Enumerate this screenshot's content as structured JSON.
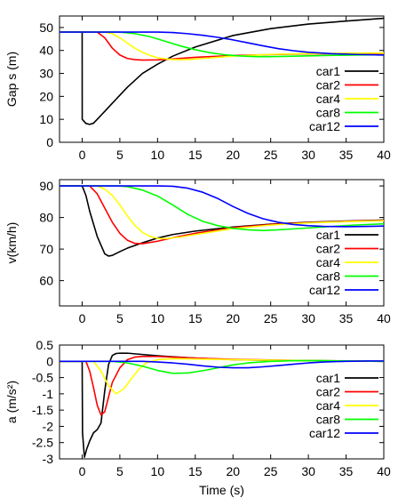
{
  "chart_data": [
    {
      "type": "line",
      "ylabel": "Gap s (m)",
      "xlabel": "",
      "xlim": [
        -3,
        40
      ],
      "ylim": [
        0,
        55
      ],
      "xticks": [
        0,
        5,
        10,
        15,
        20,
        25,
        30,
        35,
        40
      ],
      "yticks": [
        0,
        10,
        20,
        30,
        40,
        50
      ],
      "legend": "bottom-right",
      "series": [
        {
          "name": "car1",
          "color": "#000000",
          "x": [
            -3,
            0,
            0.01,
            0.5,
            1,
            1.5,
            2,
            3,
            4,
            5,
            6,
            8,
            10,
            12,
            15,
            20,
            25,
            30,
            35,
            40
          ],
          "y": [
            48,
            48,
            10,
            8.2,
            7.8,
            8.3,
            10,
            13.5,
            17,
            20.5,
            24,
            30,
            34,
            37.5,
            41.5,
            46.5,
            49.5,
            51.5,
            52.8,
            54
          ]
        },
        {
          "name": "car2",
          "color": "#ff0000",
          "x": [
            -3,
            2,
            3,
            4,
            5,
            6,
            7,
            8,
            10,
            12,
            15,
            20,
            25,
            30,
            35,
            40
          ],
          "y": [
            48,
            48,
            45.5,
            41,
            38,
            36.5,
            36,
            35.8,
            35.9,
            36.3,
            37,
            37.8,
            38.2,
            38.5,
            38.6,
            38.7
          ]
        },
        {
          "name": "car4",
          "color": "#ffff00",
          "x": [
            -3,
            3,
            4,
            5,
            6,
            7,
            8,
            9,
            10,
            12,
            14,
            16,
            20,
            25,
            30,
            35,
            40
          ],
          "y": [
            48,
            48,
            47.3,
            45.5,
            43.2,
            41,
            39.2,
            37.8,
            36.8,
            36,
            36,
            36.5,
            37.5,
            38.3,
            38.6,
            38.8,
            38.9
          ]
        },
        {
          "name": "car8",
          "color": "#00ff00",
          "x": [
            -3,
            5,
            7,
            9,
            11,
            13,
            15,
            17,
            19,
            21,
            23,
            25,
            28,
            32,
            36,
            40
          ],
          "y": [
            48,
            48,
            47.3,
            46,
            44,
            42,
            40.3,
            39,
            38.1,
            37.6,
            37.3,
            37.3,
            37.5,
            37.8,
            38,
            38.1
          ]
        },
        {
          "name": "car12",
          "color": "#0000ff",
          "x": [
            -3,
            10,
            12,
            14,
            16,
            18,
            20,
            22,
            24,
            26,
            28,
            30,
            33,
            36,
            40
          ],
          "y": [
            48,
            48,
            47.8,
            47.3,
            46.6,
            45.7,
            44.6,
            43.3,
            42,
            40.8,
            39.9,
            39.2,
            38.6,
            38.3,
            38
          ]
        }
      ]
    },
    {
      "type": "line",
      "ylabel": "v(km/h)",
      "xlabel": "",
      "xlim": [
        -3,
        40
      ],
      "ylim": [
        52,
        92
      ],
      "xticks": [
        0,
        5,
        10,
        15,
        20,
        25,
        30,
        35,
        40
      ],
      "yticks": [
        60,
        70,
        80,
        90
      ],
      "legend": "bottom-right",
      "series": [
        {
          "name": "car1",
          "color": "#000000",
          "x": [
            -3,
            0,
            0.5,
            1,
            2,
            3,
            3.5,
            4,
            5,
            6,
            8,
            10,
            12,
            15,
            20,
            25,
            30,
            35,
            40
          ],
          "y": [
            90,
            90,
            87,
            82,
            74,
            68.5,
            67.8,
            68,
            69.2,
            70.3,
            72,
            73.5,
            74.6,
            75.7,
            77,
            77.9,
            78.5,
            78.9,
            79.2
          ]
        },
        {
          "name": "car2",
          "color": "#ff0000",
          "x": [
            -3,
            1,
            2,
            3,
            4,
            5,
            6,
            7,
            8,
            10,
            12,
            15,
            20,
            25,
            30,
            35,
            40
          ],
          "y": [
            90,
            90,
            87.5,
            83,
            78.5,
            75,
            72.8,
            71.8,
            71.7,
            72.5,
            73.6,
            75,
            76.8,
            77.8,
            78.4,
            78.8,
            79.1
          ]
        },
        {
          "name": "car4",
          "color": "#ffff00",
          "x": [
            -3,
            2,
            3,
            4,
            5,
            6,
            7,
            8,
            9,
            10,
            11,
            13,
            15,
            20,
            25,
            30,
            35,
            40
          ],
          "y": [
            90,
            90,
            89,
            87,
            84,
            80.5,
            77.5,
            75.3,
            74,
            73.4,
            73.3,
            73.8,
            74.6,
            76.5,
            77.6,
            78.3,
            78.7,
            79
          ]
        },
        {
          "name": "car8",
          "color": "#00ff00",
          "x": [
            -3,
            5,
            6,
            8,
            10,
            12,
            14,
            16,
            18,
            20,
            22,
            24,
            26,
            28,
            32,
            36,
            40
          ],
          "y": [
            90,
            90,
            89.8,
            88.7,
            86.8,
            84,
            81,
            78.8,
            77.4,
            76.6,
            76.1,
            75.9,
            76.1,
            76.4,
            77,
            77.6,
            78
          ]
        },
        {
          "name": "car12",
          "color": "#0000ff",
          "x": [
            -3,
            10,
            12,
            14,
            16,
            18,
            20,
            22,
            24,
            26,
            28,
            30,
            32,
            35,
            38,
            40
          ],
          "y": [
            90,
            90,
            89.9,
            89.3,
            88,
            86,
            83.5,
            81.3,
            79.6,
            78.5,
            77.8,
            77.4,
            77.2,
            77.1,
            77.2,
            77.3
          ]
        }
      ]
    },
    {
      "type": "line",
      "ylabel": "a (m/s²)",
      "xlabel": "Time (s)",
      "xlim": [
        -3,
        40
      ],
      "ylim": [
        -3,
        0.5
      ],
      "xticks": [
        0,
        5,
        10,
        15,
        20,
        25,
        30,
        35,
        40
      ],
      "yticks": [
        -3,
        -2.5,
        -2,
        -1.5,
        -1,
        -0.5,
        0,
        0.5
      ],
      "yticklabels": [
        "-3",
        "-2.5",
        "-2",
        "-1.5",
        "-1",
        "-0.5",
        "0",
        "0.5"
      ],
      "legend": "bottom-right",
      "series": [
        {
          "name": "car1",
          "color": "#000000",
          "x": [
            -3,
            0,
            0.05,
            0.3,
            0.6,
            1,
            1.5,
            2,
            2.5,
            3,
            3.5,
            4,
            4.5,
            5,
            6,
            7,
            8,
            10,
            12,
            15,
            20,
            25,
            30,
            40
          ],
          "y": [
            0,
            0,
            -2.2,
            -2.95,
            -2.7,
            -2.45,
            -2.2,
            -2.1,
            -1.9,
            -0.9,
            -0.1,
            0.18,
            0.24,
            0.25,
            0.25,
            0.23,
            0.21,
            0.17,
            0.14,
            0.1,
            0.05,
            0.03,
            0.02,
            0
          ]
        },
        {
          "name": "car2",
          "color": "#ff0000",
          "x": [
            -3,
            0.5,
            1,
            1.5,
            2,
            2.5,
            3,
            3.5,
            4,
            5,
            6,
            7,
            8,
            10,
            12,
            15,
            20,
            30,
            40
          ],
          "y": [
            0,
            0,
            -0.3,
            -0.8,
            -1.35,
            -1.65,
            -1.55,
            -1.1,
            -0.65,
            -0.2,
            0.05,
            0.13,
            0.15,
            0.15,
            0.13,
            0.1,
            0.06,
            0.02,
            0
          ]
        },
        {
          "name": "car4",
          "color": "#ffff00",
          "x": [
            -3,
            1.5,
            2.5,
            3.5,
            4.5,
            5.5,
            6.5,
            7.5,
            8.5,
            10,
            12,
            15,
            20,
            30,
            40
          ],
          "y": [
            0,
            0,
            -0.3,
            -0.75,
            -1.0,
            -0.85,
            -0.55,
            -0.25,
            -0.05,
            0.05,
            0.08,
            0.07,
            0.05,
            0.02,
            0
          ]
        },
        {
          "name": "car8",
          "color": "#00ff00",
          "x": [
            -3,
            4,
            6,
            8,
            10,
            12,
            14,
            16,
            18,
            20,
            22,
            25,
            28,
            32,
            36,
            40
          ],
          "y": [
            0,
            0,
            -0.05,
            -0.15,
            -0.28,
            -0.37,
            -0.36,
            -0.29,
            -0.2,
            -0.11,
            -0.05,
            0,
            0.02,
            0.02,
            0.01,
            0
          ]
        },
        {
          "name": "car12",
          "color": "#0000ff",
          "x": [
            -3,
            8,
            10,
            12,
            14,
            16,
            18,
            20,
            22,
            24,
            26,
            28,
            30,
            32,
            35,
            38,
            40
          ],
          "y": [
            0,
            0,
            -0.02,
            -0.05,
            -0.09,
            -0.14,
            -0.18,
            -0.2,
            -0.2,
            -0.17,
            -0.13,
            -0.09,
            -0.05,
            -0.02,
            0,
            0.01,
            0.01
          ]
        }
      ]
    }
  ]
}
